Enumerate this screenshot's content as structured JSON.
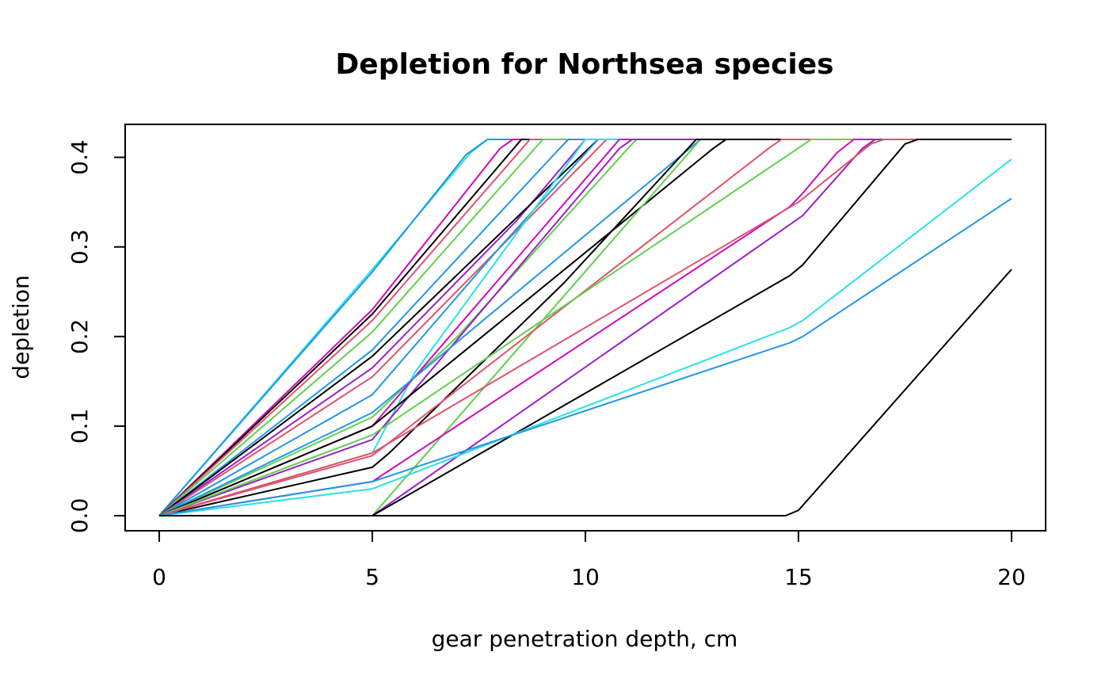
{
  "chart_data": {
    "type": "line",
    "title": "Depletion for Northsea species",
    "xlabel": "gear penetration depth, cm",
    "ylabel": "depletion",
    "xlim": [
      -0.8,
      20.8
    ],
    "ylim": [
      -0.0168,
      0.4368
    ],
    "x_ticks": [
      0,
      5,
      10,
      15,
      20
    ],
    "x_tick_labels": [
      "0",
      "5",
      "10",
      "15",
      "20"
    ],
    "y_ticks": [
      0.0,
      0.1,
      0.2,
      0.3,
      0.4
    ],
    "y_tick_labels": [
      "0.0",
      "0.1",
      "0.2",
      "0.3",
      "0.4"
    ],
    "grid": false,
    "legend": "none",
    "colors": {
      "black": "#000000",
      "red": "#DF536B",
      "green": "#61D04F",
      "blue": "#2297E6",
      "cyan": "#28E2E5",
      "magenta": "#CD0BBC",
      "purple": "#9D1FC9"
    },
    "series": [
      {
        "color": "#28E2E5",
        "points": [
          [
            0,
            0
          ],
          [
            5,
            0.275
          ],
          [
            7.3,
            0.405
          ],
          [
            7.7,
            0.42
          ],
          [
            20,
            0.42
          ]
        ]
      },
      {
        "color": "#2297E6",
        "points": [
          [
            0,
            0
          ],
          [
            5,
            0.272
          ],
          [
            7.2,
            0.403
          ],
          [
            7.7,
            0.42
          ],
          [
            20,
            0.42
          ]
        ]
      },
      {
        "color": "#CD0BBC",
        "points": [
          [
            0,
            0
          ],
          [
            5,
            0.23
          ],
          [
            8.0,
            0.41
          ],
          [
            8.3,
            0.42
          ],
          [
            20,
            0.42
          ]
        ]
      },
      {
        "color": "#000000",
        "points": [
          [
            0,
            0
          ],
          [
            5,
            0.225
          ],
          [
            8.5,
            0.42
          ],
          [
            20,
            0.42
          ]
        ]
      },
      {
        "color": "#DF536B",
        "points": [
          [
            0,
            0
          ],
          [
            5,
            0.218
          ],
          [
            8.7,
            0.42
          ],
          [
            20,
            0.42
          ]
        ]
      },
      {
        "color": "#61D04F",
        "points": [
          [
            0,
            0
          ],
          [
            5,
            0.205
          ],
          [
            9.0,
            0.42
          ],
          [
            20,
            0.42
          ]
        ]
      },
      {
        "color": "#2297E6",
        "points": [
          [
            0,
            0
          ],
          [
            5,
            0.185
          ],
          [
            9.3,
            0.405
          ],
          [
            9.6,
            0.42
          ],
          [
            20,
            0.42
          ]
        ]
      },
      {
        "color": "#9D1FC9",
        "points": [
          [
            0,
            0
          ],
          [
            5,
            0.165
          ],
          [
            8.4,
            0.33
          ],
          [
            10.0,
            0.42
          ],
          [
            20,
            0.42
          ]
        ]
      },
      {
        "color": "#000000",
        "points": [
          [
            0,
            0
          ],
          [
            5,
            0.178
          ],
          [
            10.3,
            0.42
          ],
          [
            20,
            0.42
          ]
        ]
      },
      {
        "color": "#DF536B",
        "points": [
          [
            0,
            0
          ],
          [
            5,
            0.155
          ],
          [
            10.5,
            0.42
          ],
          [
            20,
            0.42
          ]
        ]
      },
      {
        "color": "#2297E6",
        "points": [
          [
            0,
            0
          ],
          [
            5,
            0.135
          ],
          [
            8.0,
            0.3
          ],
          [
            10.3,
            0.42
          ],
          [
            20,
            0.42
          ]
        ]
      },
      {
        "color": "#28E2E5",
        "points": [
          [
            0,
            0
          ],
          [
            5,
            0.07
          ],
          [
            6.0,
            0.16
          ],
          [
            10.0,
            0.42
          ],
          [
            20,
            0.42
          ]
        ]
      },
      {
        "color": "#61D04F",
        "points": [
          [
            0,
            0
          ],
          [
            5,
            0.11
          ],
          [
            7.0,
            0.2
          ],
          [
            11.0,
            0.41
          ],
          [
            11.2,
            0.42
          ],
          [
            20,
            0.42
          ]
        ]
      },
      {
        "color": "#CD0BBC",
        "points": [
          [
            0,
            0
          ],
          [
            5,
            0.1
          ],
          [
            10.8,
            0.42
          ],
          [
            20,
            0.42
          ]
        ]
      },
      {
        "color": "#9D1FC9",
        "points": [
          [
            0,
            0
          ],
          [
            5,
            0.085
          ],
          [
            10.8,
            0.41
          ],
          [
            11.1,
            0.42
          ],
          [
            20,
            0.42
          ]
        ]
      },
      {
        "color": "#2297E6",
        "points": [
          [
            0,
            0
          ],
          [
            5,
            0.115
          ],
          [
            12.7,
            0.42
          ],
          [
            20,
            0.42
          ]
        ]
      },
      {
        "color": "#000000",
        "points": [
          [
            0,
            0
          ],
          [
            5,
            0.1
          ],
          [
            13.0,
            0.41
          ],
          [
            13.3,
            0.42
          ],
          [
            20,
            0.42
          ]
        ]
      },
      {
        "color": "#61D04F",
        "points": [
          [
            0,
            0
          ],
          [
            5,
            0.0
          ],
          [
            12.7,
            0.42
          ],
          [
            20,
            0.42
          ]
        ]
      },
      {
        "color": "#000000",
        "points": [
          [
            0,
            0
          ],
          [
            5,
            0.054
          ],
          [
            5.4,
            0.07
          ],
          [
            9.5,
            0.26
          ],
          [
            12.6,
            0.42
          ],
          [
            20,
            0.42
          ]
        ]
      },
      {
        "color": "#DF536B",
        "points": [
          [
            0,
            0
          ],
          [
            5,
            0.067
          ],
          [
            14.3,
            0.41
          ],
          [
            14.6,
            0.42
          ],
          [
            20,
            0.42
          ]
        ]
      },
      {
        "color": "#61D04F",
        "points": [
          [
            0,
            0
          ],
          [
            5,
            0.09
          ],
          [
            15.3,
            0.42
          ],
          [
            20,
            0.42
          ]
        ]
      },
      {
        "color": "#CD0BBC",
        "points": [
          [
            0,
            0
          ],
          [
            5,
            0.038
          ],
          [
            14.8,
            0.345
          ],
          [
            15.1,
            0.36
          ],
          [
            15.9,
            0.405
          ],
          [
            16.3,
            0.42
          ],
          [
            20,
            0.42
          ]
        ]
      },
      {
        "color": "#9D1FC9",
        "points": [
          [
            0,
            0
          ],
          [
            5,
            0.0
          ],
          [
            14.8,
            0.325
          ],
          [
            15.1,
            0.335
          ],
          [
            16.5,
            0.41
          ],
          [
            16.8,
            0.42
          ],
          [
            20,
            0.42
          ]
        ]
      },
      {
        "color": "#DF536B",
        "points": [
          [
            0,
            0
          ],
          [
            5,
            0.07
          ],
          [
            15.0,
            0.35
          ],
          [
            16.7,
            0.415
          ],
          [
            17.0,
            0.42
          ],
          [
            20,
            0.42
          ]
        ]
      },
      {
        "color": "#000000",
        "points": [
          [
            0,
            0
          ],
          [
            5,
            0.0
          ],
          [
            14.8,
            0.268
          ],
          [
            15.1,
            0.28
          ],
          [
            17.5,
            0.415
          ],
          [
            17.8,
            0.42
          ],
          [
            20,
            0.42
          ]
        ]
      },
      {
        "color": "#28E2E5",
        "points": [
          [
            0,
            0
          ],
          [
            5,
            0.03
          ],
          [
            14.8,
            0.21
          ],
          [
            15.1,
            0.218
          ],
          [
            20,
            0.398
          ]
        ]
      },
      {
        "color": "#2297E6",
        "points": [
          [
            0,
            0
          ],
          [
            5,
            0.038
          ],
          [
            14.8,
            0.193
          ],
          [
            15.1,
            0.2
          ],
          [
            20,
            0.354
          ]
        ]
      },
      {
        "color": "#000000",
        "points": [
          [
            0,
            0
          ],
          [
            5,
            0.0
          ],
          [
            14.7,
            0.0
          ],
          [
            15.0,
            0.006
          ],
          [
            20,
            0.275
          ]
        ]
      }
    ]
  }
}
